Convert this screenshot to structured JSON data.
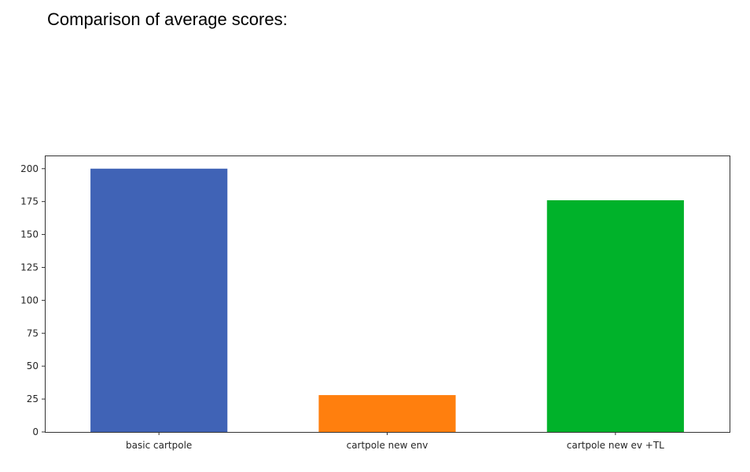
{
  "heading": "Comparison of average scores:",
  "chart_data": {
    "type": "bar",
    "categories": [
      "basic cartpole",
      "cartpole new env",
      "cartpole new ev +TL"
    ],
    "values": [
      200,
      28,
      176
    ],
    "colors": [
      "#4063b6",
      "#ff7f0e",
      "#00b22a"
    ],
    "title": "",
    "xlabel": "",
    "ylabel": "",
    "ylim": [
      0,
      210
    ],
    "yticks": [
      0,
      25,
      50,
      75,
      100,
      125,
      150,
      175,
      200
    ],
    "grid": false,
    "legend": "none"
  }
}
